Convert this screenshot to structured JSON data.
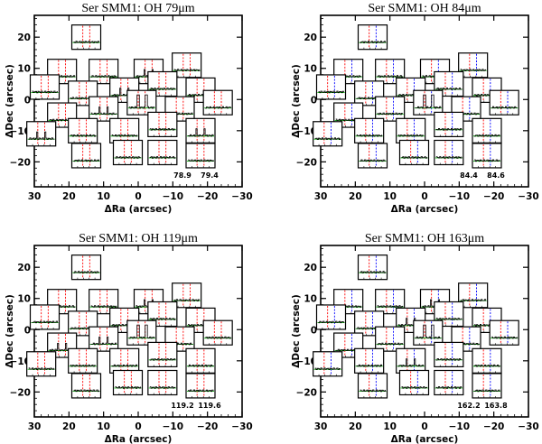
{
  "figure": {
    "line_colors": {
      "axis": "#000000",
      "spectrum": "#000000",
      "continuum": "#00aa00",
      "marker_red": "#ff0000",
      "marker_blue": "#0000ff"
    }
  },
  "chart_data": [
    {
      "type": "spectral-map",
      "title": "Ser SMM1: OH 79μm",
      "xlabel": "ΔRa (arcsec)",
      "ylabel": "ΔDec (arcsec)",
      "xlim": [
        30,
        -30
      ],
      "ylim": [
        -28,
        27
      ],
      "xticks": [
        30,
        20,
        10,
        0,
        -10,
        -20,
        -30
      ],
      "yticks": [
        20,
        10,
        0,
        -10,
        -20
      ],
      "line_wavelengths": [
        "78.9",
        "79.4"
      ],
      "marker_colors": [
        "#ff0000",
        "#ff0000"
      ],
      "spaxels": [
        {
          "ra": 15,
          "dec": 20,
          "feature": "none"
        },
        {
          "ra": 22,
          "dec": 9,
          "feature": "none"
        },
        {
          "ra": 10,
          "dec": 9,
          "feature": "none"
        },
        {
          "ra": -3,
          "dec": 9,
          "feature": "weak"
        },
        {
          "ra": -14,
          "dec": 11,
          "feature": "none"
        },
        {
          "ra": 27,
          "dec": 4,
          "feature": "none"
        },
        {
          "ra": 16,
          "dec": 2,
          "feature": "none"
        },
        {
          "ra": 4,
          "dec": 3,
          "feature": "weak"
        },
        {
          "ra": -7,
          "dec": 5,
          "feature": "none"
        },
        {
          "ra": -18,
          "dec": 3,
          "feature": "none"
        },
        {
          "ra": 22,
          "dec": -5,
          "feature": "none"
        },
        {
          "ra": 10,
          "dec": -3,
          "feature": "weak"
        },
        {
          "ra": -1,
          "dec": -1,
          "feature": "strong"
        },
        {
          "ra": -12,
          "dec": -3,
          "feature": "none"
        },
        {
          "ra": -23,
          "dec": -1,
          "feature": "none"
        },
        {
          "ra": 28,
          "dec": -11,
          "feature": "weak"
        },
        {
          "ra": 16,
          "dec": -10,
          "feature": "none"
        },
        {
          "ra": 4,
          "dec": -10,
          "feature": "none"
        },
        {
          "ra": -7,
          "dec": -8,
          "feature": "none"
        },
        {
          "ra": -18,
          "dec": -10,
          "feature": "weak"
        },
        {
          "ra": 15,
          "dec": -18,
          "feature": "none"
        },
        {
          "ra": 3,
          "dec": -17,
          "feature": "none"
        },
        {
          "ra": -7,
          "dec": -17,
          "feature": "none"
        },
        {
          "ra": -18,
          "dec": -18,
          "feature": "none"
        }
      ]
    },
    {
      "type": "spectral-map",
      "title": "Ser SMM1: OH 84μm",
      "xlabel": "ΔRa (arcsec)",
      "ylabel": "ΔDec (arcsec)",
      "xlim": [
        30,
        -30
      ],
      "ylim": [
        -28,
        27
      ],
      "xticks": [
        30,
        20,
        10,
        0,
        -10,
        -20,
        -30
      ],
      "yticks": [
        20,
        10,
        0,
        -10,
        -20
      ],
      "line_wavelengths": [
        "84.4",
        "84.6"
      ],
      "marker_colors": [
        "#ff0000",
        "#0000ff"
      ],
      "spaxels": [
        {
          "ra": 15,
          "dec": 20,
          "feature": "none"
        },
        {
          "ra": 22,
          "dec": 9,
          "feature": "none"
        },
        {
          "ra": 10,
          "dec": 9,
          "feature": "none"
        },
        {
          "ra": -3,
          "dec": 9,
          "feature": "none"
        },
        {
          "ra": -14,
          "dec": 11,
          "feature": "none"
        },
        {
          "ra": 27,
          "dec": 4,
          "feature": "none"
        },
        {
          "ra": 16,
          "dec": 2,
          "feature": "none"
        },
        {
          "ra": 4,
          "dec": 3,
          "feature": "none"
        },
        {
          "ra": -7,
          "dec": 5,
          "feature": "none"
        },
        {
          "ra": -18,
          "dec": 3,
          "feature": "none"
        },
        {
          "ra": 22,
          "dec": -5,
          "feature": "none"
        },
        {
          "ra": 10,
          "dec": -3,
          "feature": "none"
        },
        {
          "ra": -1,
          "dec": -1,
          "feature": "strong"
        },
        {
          "ra": -12,
          "dec": -3,
          "feature": "none"
        },
        {
          "ra": -23,
          "dec": -1,
          "feature": "none"
        },
        {
          "ra": 28,
          "dec": -11,
          "feature": "none"
        },
        {
          "ra": 16,
          "dec": -10,
          "feature": "none"
        },
        {
          "ra": 4,
          "dec": -10,
          "feature": "none"
        },
        {
          "ra": -7,
          "dec": -8,
          "feature": "none"
        },
        {
          "ra": -18,
          "dec": -10,
          "feature": "none"
        },
        {
          "ra": 15,
          "dec": -18,
          "feature": "none"
        },
        {
          "ra": 3,
          "dec": -17,
          "feature": "none"
        },
        {
          "ra": -7,
          "dec": -17,
          "feature": "none"
        },
        {
          "ra": -18,
          "dec": -18,
          "feature": "none"
        }
      ]
    },
    {
      "type": "spectral-map",
      "title": "Ser SMM1: OH 119μm",
      "xlabel": "ΔRa (arcsec)",
      "ylabel": "ΔDec (arcsec)",
      "xlim": [
        30,
        -30
      ],
      "ylim": [
        -28,
        27
      ],
      "xticks": [
        30,
        20,
        10,
        0,
        -10,
        -20,
        -30
      ],
      "yticks": [
        20,
        10,
        0,
        -10,
        -20
      ],
      "line_wavelengths": [
        "119.2",
        "119.6"
      ],
      "marker_colors": [
        "#ff0000",
        "#ff0000"
      ],
      "spaxels": [
        {
          "ra": 15,
          "dec": 20,
          "feature": "none"
        },
        {
          "ra": 22,
          "dec": 9,
          "feature": "none"
        },
        {
          "ra": 10,
          "dec": 9,
          "feature": "none"
        },
        {
          "ra": -3,
          "dec": 9,
          "feature": "weak"
        },
        {
          "ra": -14,
          "dec": 11,
          "feature": "none"
        },
        {
          "ra": 27,
          "dec": 4,
          "feature": "none"
        },
        {
          "ra": 16,
          "dec": 2,
          "feature": "none"
        },
        {
          "ra": 4,
          "dec": 3,
          "feature": "none"
        },
        {
          "ra": -7,
          "dec": 5,
          "feature": "none"
        },
        {
          "ra": -18,
          "dec": 3,
          "feature": "none"
        },
        {
          "ra": 22,
          "dec": -5,
          "feature": "weak"
        },
        {
          "ra": 10,
          "dec": -3,
          "feature": "weak"
        },
        {
          "ra": -1,
          "dec": -1,
          "feature": "strong"
        },
        {
          "ra": -12,
          "dec": -3,
          "feature": "none"
        },
        {
          "ra": -23,
          "dec": -1,
          "feature": "none"
        },
        {
          "ra": 28,
          "dec": -11,
          "feature": "none"
        },
        {
          "ra": 16,
          "dec": -10,
          "feature": "none"
        },
        {
          "ra": 4,
          "dec": -10,
          "feature": "none"
        },
        {
          "ra": -7,
          "dec": -8,
          "feature": "none"
        },
        {
          "ra": -18,
          "dec": -10,
          "feature": "none"
        },
        {
          "ra": 15,
          "dec": -18,
          "feature": "none"
        },
        {
          "ra": 3,
          "dec": -17,
          "feature": "none"
        },
        {
          "ra": -7,
          "dec": -17,
          "feature": "none"
        },
        {
          "ra": -18,
          "dec": -18,
          "feature": "none"
        }
      ]
    },
    {
      "type": "spectral-map",
      "title": "Ser SMM1: OH 163μm",
      "xlabel": "ΔRa (arcsec)",
      "ylabel": "ΔDec (arcsec)",
      "xlim": [
        30,
        -30
      ],
      "ylim": [
        -28,
        27
      ],
      "xticks": [
        30,
        20,
        10,
        0,
        -10,
        -20,
        -30
      ],
      "yticks": [
        20,
        10,
        0,
        -10,
        -20
      ],
      "line_wavelengths": [
        "162.2",
        "163.8"
      ],
      "marker_colors": [
        "#ff0000",
        "#0000ff"
      ],
      "spaxels": [
        {
          "ra": 15,
          "dec": 20,
          "feature": "none"
        },
        {
          "ra": 22,
          "dec": 9,
          "feature": "none"
        },
        {
          "ra": 10,
          "dec": 9,
          "feature": "none"
        },
        {
          "ra": -3,
          "dec": 9,
          "feature": "weak"
        },
        {
          "ra": -14,
          "dec": 11,
          "feature": "none"
        },
        {
          "ra": 27,
          "dec": 4,
          "feature": "none"
        },
        {
          "ra": 16,
          "dec": 2,
          "feature": "none"
        },
        {
          "ra": 4,
          "dec": 3,
          "feature": "weak"
        },
        {
          "ra": -7,
          "dec": 5,
          "feature": "none"
        },
        {
          "ra": -18,
          "dec": 3,
          "feature": "none"
        },
        {
          "ra": 22,
          "dec": -5,
          "feature": "none"
        },
        {
          "ra": 10,
          "dec": -3,
          "feature": "none"
        },
        {
          "ra": -1,
          "dec": -1,
          "feature": "strong"
        },
        {
          "ra": -12,
          "dec": -3,
          "feature": "none"
        },
        {
          "ra": -23,
          "dec": -1,
          "feature": "none"
        },
        {
          "ra": 28,
          "dec": -11,
          "feature": "none"
        },
        {
          "ra": 16,
          "dec": -10,
          "feature": "none"
        },
        {
          "ra": 4,
          "dec": -10,
          "feature": "weak"
        },
        {
          "ra": -7,
          "dec": -8,
          "feature": "none"
        },
        {
          "ra": -18,
          "dec": -10,
          "feature": "none"
        },
        {
          "ra": 15,
          "dec": -18,
          "feature": "none"
        },
        {
          "ra": 3,
          "dec": -17,
          "feature": "none"
        },
        {
          "ra": -7,
          "dec": -17,
          "feature": "none"
        },
        {
          "ra": -18,
          "dec": -18,
          "feature": "none"
        }
      ]
    }
  ]
}
